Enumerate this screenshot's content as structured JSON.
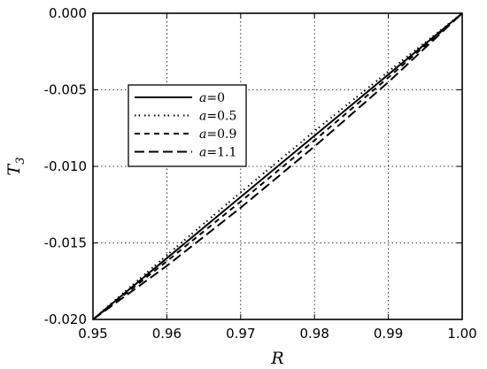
{
  "chart_data": {
    "type": "line",
    "xlabel": "R",
    "ylabel": "T",
    "ylabel_subscript": "3",
    "xlim": [
      0.95,
      1.0
    ],
    "ylim": [
      -0.02,
      0.0
    ],
    "x_ticks": [
      0.95,
      0.96,
      0.97,
      0.98,
      0.99,
      1.0
    ],
    "x_tick_labels": [
      "0.95",
      "0.96",
      "0.97",
      "0.98",
      "0.99",
      "1.00"
    ],
    "y_ticks": [
      0.0,
      -0.005,
      -0.01,
      -0.015,
      -0.02
    ],
    "y_tick_labels": [
      "0.000",
      "-0.005",
      "-0.010",
      "-0.015",
      "-0.020"
    ],
    "grid": true,
    "legend_position": "upper-left",
    "series": [
      {
        "name": "a=0",
        "label_parts": [
          "a",
          "=",
          "0"
        ],
        "dash": "solid",
        "color": "#000000",
        "x": [
          0.95,
          0.96,
          0.97,
          0.98,
          0.99,
          1.0
        ],
        "y": [
          -0.02,
          -0.016,
          -0.012,
          -0.008,
          -0.004,
          0.0
        ]
      },
      {
        "name": "a=0.5",
        "label_parts": [
          "a",
          "=",
          "0.5"
        ],
        "dash": "dashdot",
        "color": "#000000",
        "x": [
          0.95,
          0.96,
          0.97,
          0.98,
          0.99,
          1.0
        ],
        "y": [
          -0.02,
          -0.0158,
          -0.0117,
          -0.0077,
          -0.0038,
          0.0
        ]
      },
      {
        "name": "a=0.9",
        "label_parts": [
          "a",
          "=",
          "0.9"
        ],
        "dash": "dashed",
        "color": "#000000",
        "x": [
          0.95,
          0.96,
          0.97,
          0.98,
          0.99,
          1.0
        ],
        "y": [
          -0.02,
          -0.0162,
          -0.0123,
          -0.0083,
          -0.0042,
          0.0
        ]
      },
      {
        "name": "a=1.1",
        "label_parts": [
          "a",
          "=",
          "1.1"
        ],
        "dash": "longdash",
        "color": "#000000",
        "x": [
          0.95,
          0.96,
          0.97,
          0.98,
          0.99,
          1.0
        ],
        "y": [
          -0.02,
          -0.0165,
          -0.0127,
          -0.0087,
          -0.0045,
          0.0
        ]
      }
    ]
  }
}
